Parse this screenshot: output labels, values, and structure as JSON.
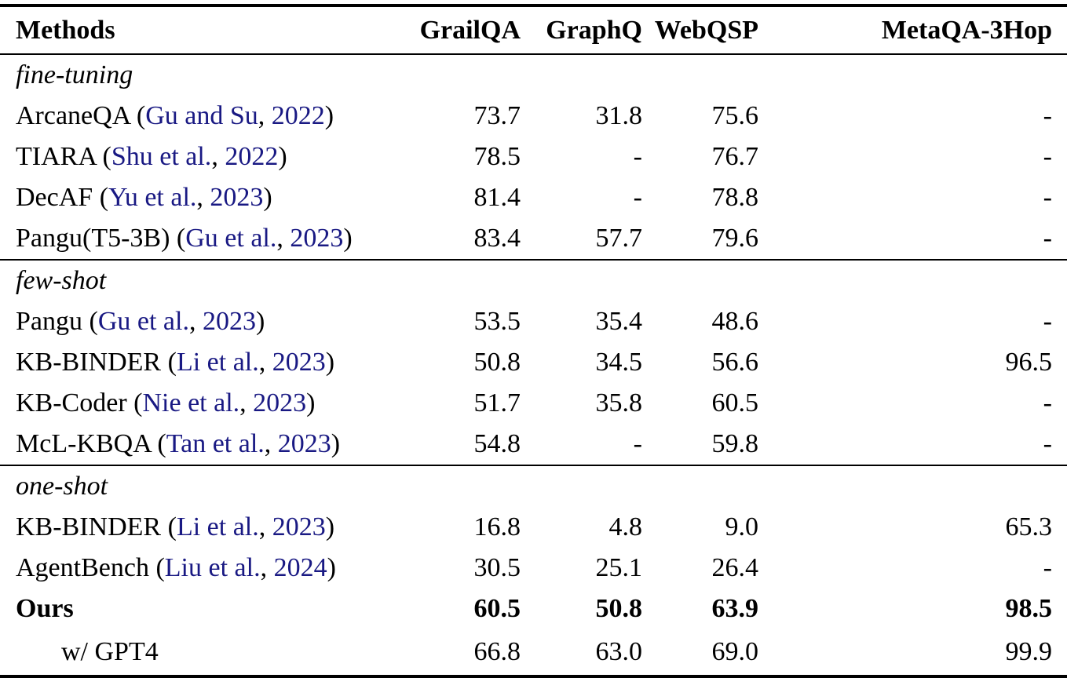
{
  "colors": {
    "citation": "#191983",
    "text": "#000000",
    "rule": "#000000",
    "background": "#ffffff"
  },
  "table": {
    "columns": [
      "Methods",
      "GrailQA",
      "GraphQ",
      "WebQSP",
      "MetaQA-3Hop"
    ],
    "sections": [
      {
        "label": "fine-tuning",
        "rows": [
          {
            "method": "ArcaneQA",
            "citation": {
              "authors": "Gu and Su",
              "year": "2022"
            },
            "values": [
              "73.7",
              "31.8",
              "75.6",
              "-"
            ],
            "bold": false,
            "indent": false
          },
          {
            "method": "TIARA",
            "citation": {
              "authors": "Shu et al.",
              "year": "2022"
            },
            "values": [
              "78.5",
              "-",
              "76.7",
              "-"
            ],
            "bold": false,
            "indent": false
          },
          {
            "method": "DecAF",
            "citation": {
              "authors": "Yu et al.",
              "year": "2023"
            },
            "values": [
              "81.4",
              "-",
              "78.8",
              "-"
            ],
            "bold": false,
            "indent": false
          },
          {
            "method": "Pangu(T5-3B)",
            "citation": {
              "authors": "Gu et al.",
              "year": "2023"
            },
            "values": [
              "83.4",
              "57.7",
              "79.6",
              "-"
            ],
            "bold": false,
            "indent": false
          }
        ]
      },
      {
        "label": "few-shot",
        "rows": [
          {
            "method": "Pangu",
            "citation": {
              "authors": "Gu et al.",
              "year": "2023"
            },
            "values": [
              "53.5",
              "35.4",
              "48.6",
              "-"
            ],
            "bold": false,
            "indent": false
          },
          {
            "method": "KB-BINDER",
            "citation": {
              "authors": "Li et al.",
              "year": "2023"
            },
            "values": [
              "50.8",
              "34.5",
              "56.6",
              "96.5"
            ],
            "bold": false,
            "indent": false
          },
          {
            "method": "KB-Coder",
            "citation": {
              "authors": "Nie et al.",
              "year": "2023"
            },
            "values": [
              "51.7",
              "35.8",
              "60.5",
              "-"
            ],
            "bold": false,
            "indent": false
          },
          {
            "method": "McL-KBQA",
            "citation": {
              "authors": "Tan et al.",
              "year": "2023"
            },
            "values": [
              "54.8",
              "-",
              "59.8",
              "-"
            ],
            "bold": false,
            "indent": false
          }
        ]
      },
      {
        "label": "one-shot",
        "rows": [
          {
            "method": "KB-BINDER",
            "citation": {
              "authors": "Li et al.",
              "year": "2023"
            },
            "values": [
              "16.8",
              "4.8",
              "9.0",
              "65.3"
            ],
            "bold": false,
            "indent": false
          },
          {
            "method": "AgentBench",
            "citation": {
              "authors": "Liu et al.",
              "year": "2024"
            },
            "values": [
              "30.5",
              "25.1",
              "26.4",
              "-"
            ],
            "bold": false,
            "indent": false
          },
          {
            "method": "Ours",
            "citation": null,
            "values": [
              "60.5",
              "50.8",
              "63.9",
              "98.5"
            ],
            "bold": true,
            "indent": false
          },
          {
            "method": "w/ GPT4",
            "citation": null,
            "values": [
              "66.8",
              "63.0",
              "69.0",
              "99.9"
            ],
            "bold": false,
            "indent": true
          }
        ]
      }
    ]
  }
}
